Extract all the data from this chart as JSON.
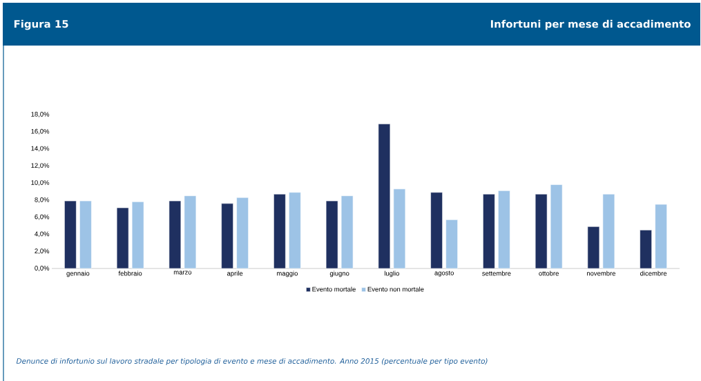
{
  "chart_data": {
    "type": "bar",
    "title": "Figura 15",
    "subtitle": "Infortuni per mese di accadimento",
    "annotations": [
      "Denunce di infortunio sul lavoro stradale per tipologia di evento e mese di accadimento. Anno 2015 (percentuale per tipo evento)"
    ],
    "categories": [
      "gennaio",
      "febbraio",
      "marzo",
      "aprile",
      "maggio",
      "giugno",
      "luglio",
      "agosto",
      "settembre",
      "ottobre",
      "novembre",
      "dicembre"
    ],
    "series": [
      {
        "name": "Evento mortale",
        "color": "#1f3060",
        "values": [
          7.9,
          7.1,
          7.9,
          7.6,
          8.7,
          7.9,
          16.9,
          8.9,
          8.7,
          8.7,
          4.9,
          4.5
        ]
      },
      {
        "name": "Evento non mortale",
        "color": "#9dc3e6",
        "values": [
          7.9,
          7.8,
          8.5,
          8.3,
          8.9,
          8.5,
          9.3,
          5.7,
          9.1,
          9.8,
          8.7,
          7.5
        ]
      }
    ],
    "ylim": [
      0,
      18
    ],
    "yticks": [
      {
        "value": 0,
        "label": "0,0%"
      },
      {
        "value": 2,
        "label": "2,0%"
      },
      {
        "value": 4,
        "label": "4,0%"
      },
      {
        "value": 6,
        "label": "6,0%"
      },
      {
        "value": 8,
        "label": "8,0%"
      },
      {
        "value": 10,
        "label": "10,0%"
      },
      {
        "value": 12,
        "label": "12,0%"
      },
      {
        "value": 14,
        "label": "14,0%"
      },
      {
        "value": 16,
        "label": "16,0%"
      },
      {
        "value": 18,
        "label": "18,0%"
      }
    ],
    "legend": "bottom",
    "grid": false
  }
}
